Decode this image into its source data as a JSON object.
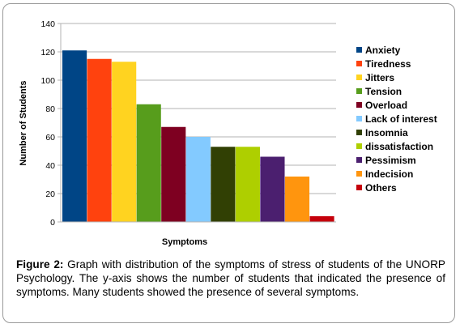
{
  "chart_data": {
    "type": "bar",
    "title": "",
    "xlabel": "Symptoms",
    "ylabel": "Number of Students",
    "ylim": [
      0,
      140
    ],
    "yticks": [
      0,
      20,
      40,
      60,
      80,
      100,
      120,
      140
    ],
    "grid": true,
    "legend_position": "right",
    "categories": [
      "Anxiety",
      "Tiredness",
      "Jitters",
      "Tension",
      "Overload",
      "Lack of interest",
      "Insomnia",
      "dissatisfaction",
      "Pessimism",
      "Indecision",
      "Others"
    ],
    "values": [
      121,
      115,
      113,
      83,
      67,
      60,
      53,
      53,
      46,
      32,
      4
    ],
    "colors": [
      "#004586",
      "#ff420e",
      "#ffd320",
      "#579d1c",
      "#7e0021",
      "#83caff",
      "#314004",
      "#aecf00",
      "#4b1f6f",
      "#ff950e",
      "#c5000b"
    ]
  },
  "caption": {
    "label": "Figure 2:",
    "text": " Graph with distribution of the symptoms of stress of students of the UNORP Psychology. The y-axis shows the number of students that indicated the presence of symptoms. Many students showed the presence of several symptoms."
  }
}
